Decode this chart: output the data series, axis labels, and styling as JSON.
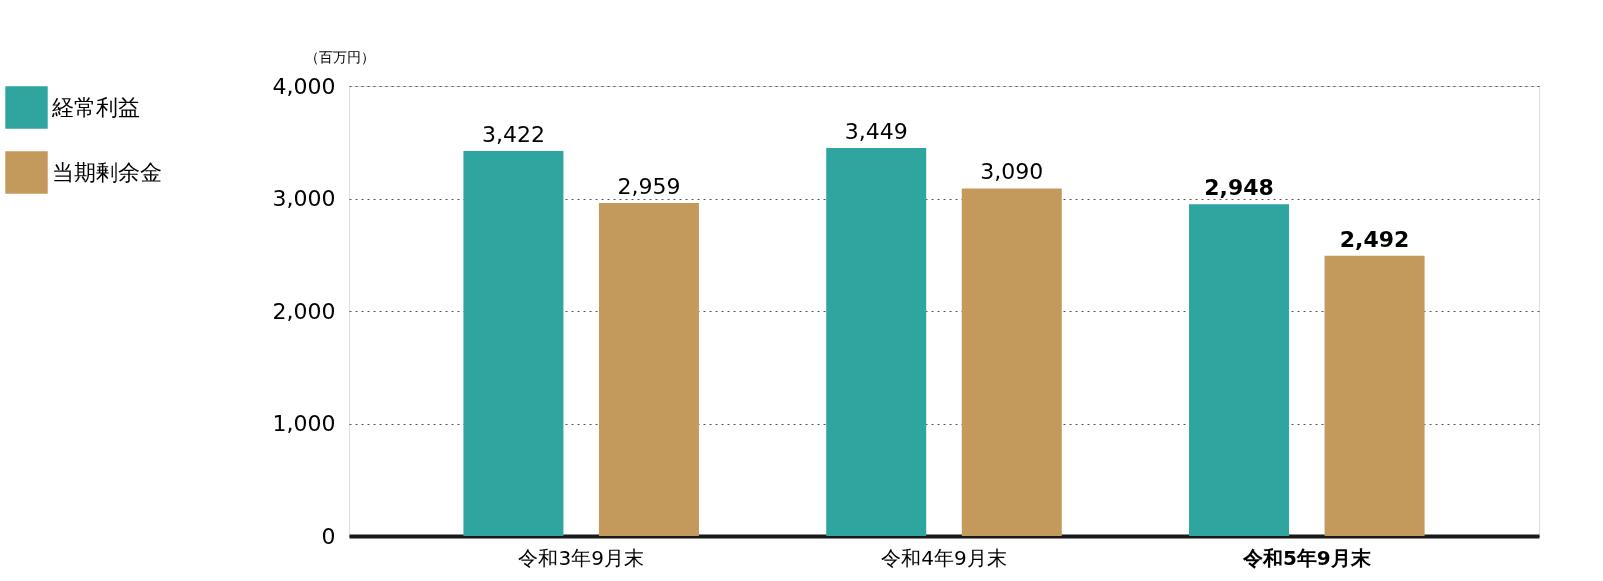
{
  "chart_data": {
    "type": "bar",
    "ylabel": "（百万円）",
    "categories": [
      "令和3年9月末",
      "令和4年9月末",
      "令和5年9月末"
    ],
    "series": [
      {
        "name": "経常利益",
        "color": "#2fa5a0",
        "values": [
          3422,
          3449,
          2948
        ],
        "value_labels": [
          "3,422",
          "3,449",
          "2,948"
        ]
      },
      {
        "name": "当期剰余金",
        "color": "#c4995c",
        "values": [
          2959,
          3090,
          2492
        ],
        "value_labels": [
          "2,959",
          "3,090",
          "2,492"
        ]
      }
    ],
    "ylim": [
      0,
      4000
    ],
    "yticks": [
      0,
      {
        "value": 1000,
        "label": "1,000"
      },
      {
        "value": 2000,
        "label": "2,000"
      },
      {
        "value": 3000,
        "label": "3,000"
      },
      {
        "value": 4000,
        "label": "4,000"
      }
    ],
    "grid": "y",
    "legend": "top left"
  }
}
